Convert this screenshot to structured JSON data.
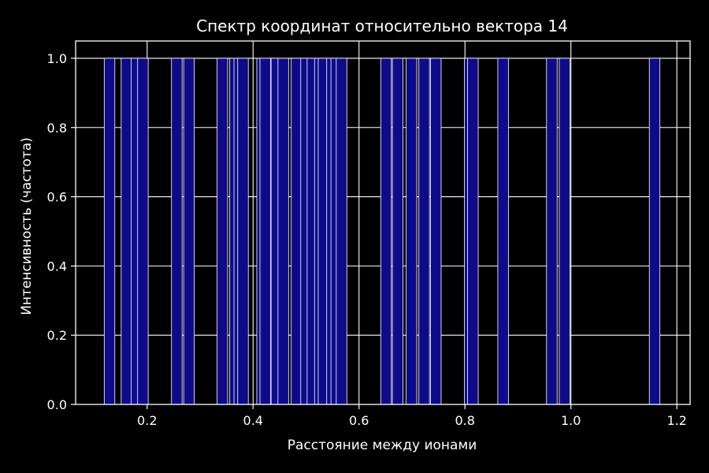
{
  "chart_data": {
    "type": "bar",
    "title": "Спектр координат относительно вектора 14",
    "xlabel": "Расстояние между ионами",
    "ylabel": "Интенсивность (частота)",
    "xlim": [
      0.065,
      1.225
    ],
    "ylim": [
      0,
      1.05
    ],
    "xticks": [
      "0.2",
      "0.4",
      "0.6",
      "0.8",
      "1.0",
      "1.2"
    ],
    "yticks": [
      "0.0",
      "0.2",
      "0.4",
      "0.6",
      "0.8",
      "1.0"
    ],
    "grid": true,
    "bar_width": 0.02,
    "colors": {
      "background": "#000000",
      "bar_fill": "#0e0b8a",
      "bar_edge": "#ffffff",
      "axes": "#ffffff",
      "grid": "#ffffff",
      "text": "#ffffff"
    },
    "x": [
      0.129,
      0.161,
      0.18,
      0.192,
      0.256,
      0.279,
      0.342,
      0.366,
      0.374,
      0.381,
      0.417,
      0.423,
      0.444,
      0.457,
      0.482,
      0.5,
      0.512,
      0.526,
      0.533,
      0.549,
      0.557,
      0.567,
      0.651,
      0.673,
      0.699,
      0.723,
      0.745,
      0.809,
      0.815,
      0.872,
      0.964,
      0.988,
      1.158
    ],
    "values": [
      1,
      1,
      1,
      1,
      1,
      1,
      1,
      1,
      1,
      1,
      1,
      1,
      1,
      1,
      1,
      1,
      1,
      1,
      1,
      1,
      1,
      1,
      1,
      1,
      1,
      1,
      1,
      1,
      1,
      1,
      1,
      1,
      1
    ]
  }
}
